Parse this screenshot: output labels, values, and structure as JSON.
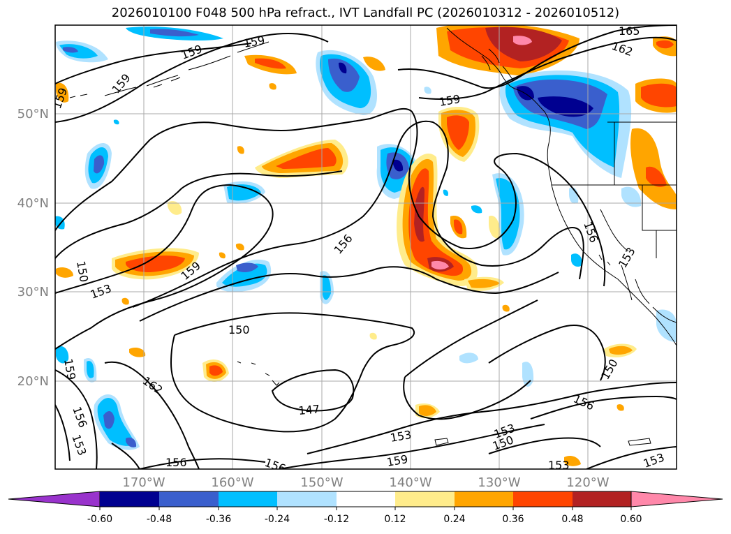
{
  "title": "2026010100 F048 500 hPa refract., IVT Landfall PC (2026010312 - 2026010512)",
  "lat_labels": [
    "50°N",
    "40°N",
    "30°N",
    "20°N"
  ],
  "lon_labels": [
    "170°W",
    "160°W",
    "150°W",
    "140°W",
    "130°W",
    "120°W"
  ],
  "contour_labels": [
    "165",
    "162",
    "159",
    "159",
    "159",
    "159",
    "159",
    "159",
    "156",
    "156",
    "156",
    "156",
    "156",
    "153",
    "153",
    "153",
    "153",
    "153",
    "153",
    "150",
    "150",
    "150",
    "150",
    "147",
    "162",
    "159",
    "156",
    "153",
    "159"
  ],
  "colorbar": {
    "ticks": [
      "-0.60",
      "-0.48",
      "-0.36",
      "-0.24",
      "-0.12",
      "0.12",
      "0.24",
      "0.36",
      "0.48",
      "0.60"
    ],
    "colors": [
      "#9933cc",
      "#000090",
      "#3a5fcd",
      "#00bfff",
      "#b0e2ff",
      "#ffffff",
      "#ffec8b",
      "#ffa500",
      "#ff4500",
      "#b22222",
      "#ff88aa"
    ]
  }
}
